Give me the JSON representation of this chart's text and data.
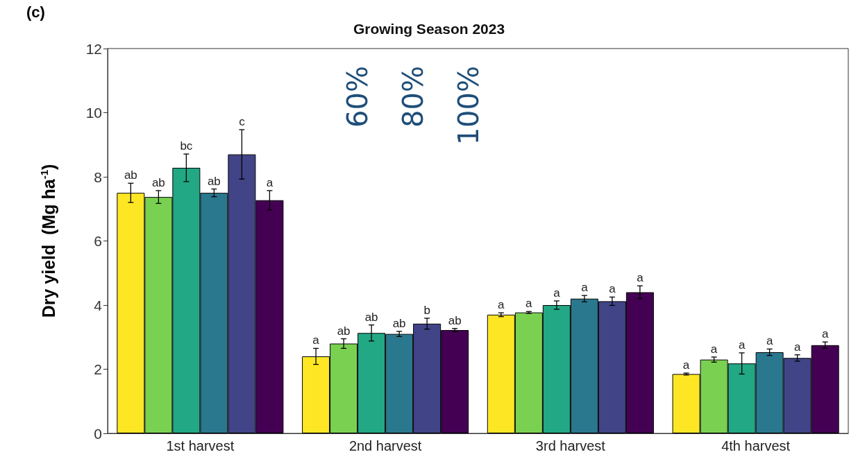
{
  "chart_data": {
    "type": "bar",
    "title": "Growing Season 2023",
    "ylabel": "Dry yield  (Mg ha$^{-1}$)",
    "categories": [
      "1st harvest",
      "2nd harvest",
      "3rd harvest",
      "4th harvest"
    ],
    "series": [
      {
        "color": "#fde725",
        "values": [
          7.5,
          2.4,
          3.7,
          1.85
        ],
        "errors": [
          0.3,
          0.25,
          0.06,
          0.03
        ],
        "value_labels": [
          "ab",
          "a",
          "a",
          "a"
        ]
      },
      {
        "color": "#7ad151",
        "values": [
          7.37,
          2.8,
          3.77,
          2.3
        ],
        "errors": [
          0.2,
          0.15,
          0.03,
          0.08
        ],
        "value_labels": [
          "ab",
          "ab",
          "a",
          "a"
        ]
      },
      {
        "color": "#22a884",
        "values": [
          8.28,
          3.13,
          4.0,
          2.18
        ],
        "errors": [
          0.43,
          0.25,
          0.13,
          0.33
        ],
        "value_labels": [
          "bc",
          "ab",
          "a",
          "a"
        ]
      },
      {
        "color": "#2a788e",
        "values": [
          7.5,
          3.1,
          4.2,
          2.53
        ],
        "errors": [
          0.12,
          0.08,
          0.1,
          0.1
        ],
        "value_labels": [
          "ab",
          "ab",
          "a",
          "a"
        ]
      },
      {
        "color": "#414487",
        "values": [
          8.7,
          3.42,
          4.12,
          2.35
        ],
        "errors": [
          0.77,
          0.17,
          0.13,
          0.1
        ],
        "value_labels": [
          "c",
          "b",
          "a",
          "a"
        ]
      },
      {
        "color": "#440154",
        "values": [
          7.27,
          3.22,
          4.4,
          2.75
        ],
        "errors": [
          0.3,
          0.05,
          0.2,
          0.1
        ],
        "value_labels": [
          "a",
          "ab",
          "a",
          "a"
        ]
      }
    ],
    "annotations": [
      "(c)",
      "60%",
      "80%",
      "100%"
    ],
    "ylim": [
      0,
      12
    ],
    "yticks": [
      0,
      2,
      4,
      6,
      8,
      10,
      12
    ],
    "grid": false
  }
}
